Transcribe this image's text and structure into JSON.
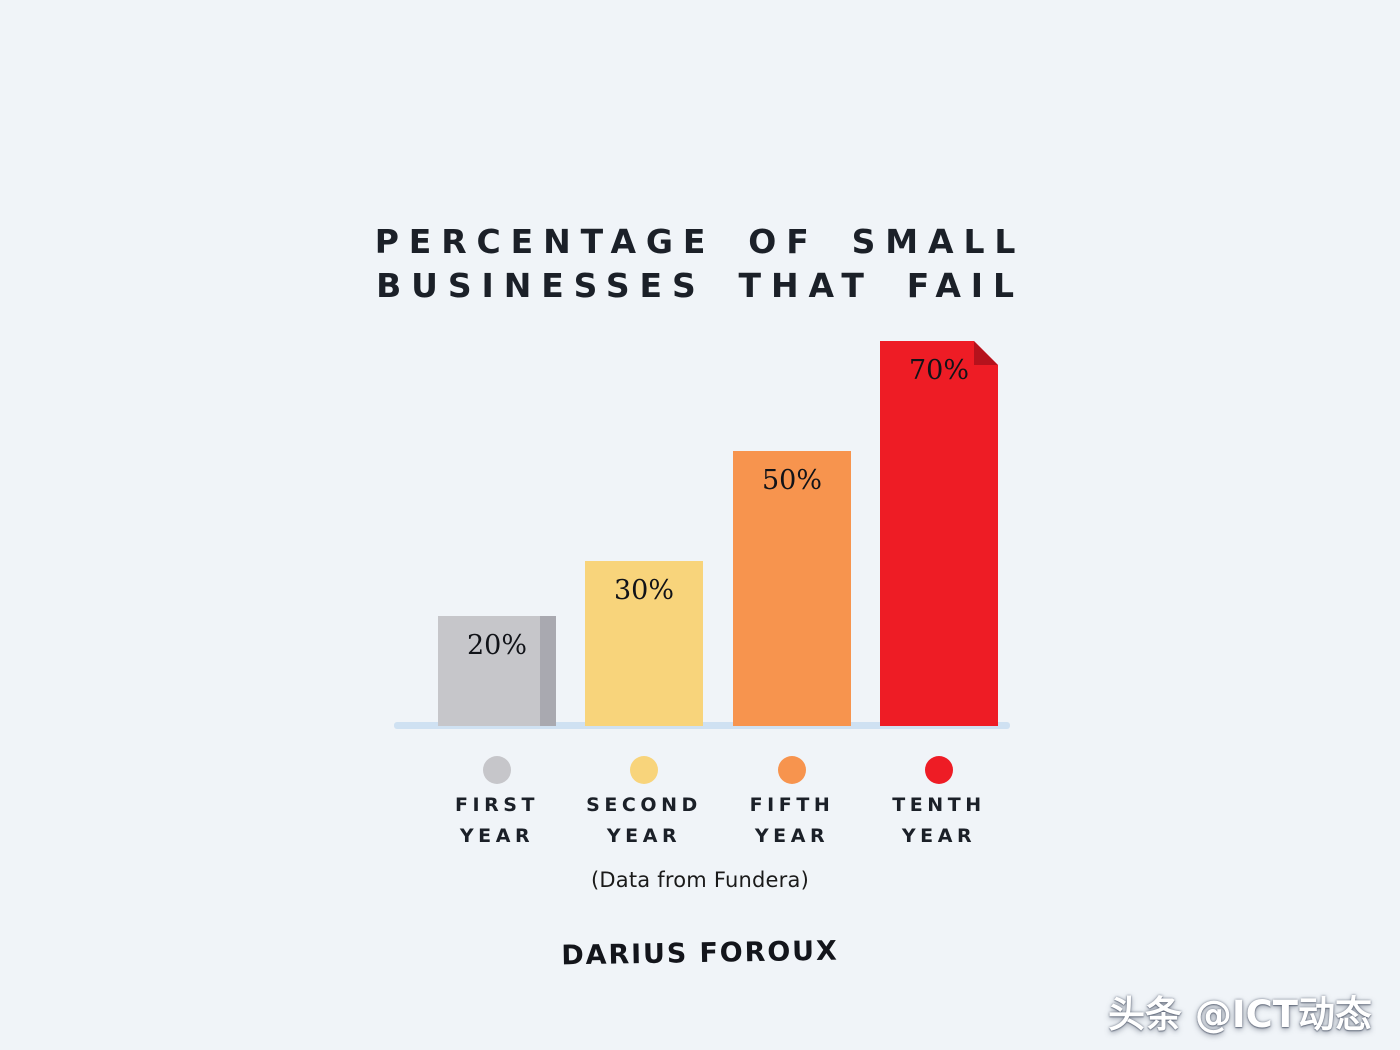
{
  "chart_data": {
    "type": "bar",
    "title": "PERCENTAGE OF SMALL BUSINESSES THAT FAIL",
    "title_lines": [
      "PERCENTAGE OF SMALL",
      "BUSINESSES THAT FAIL"
    ],
    "categories": [
      "FIRST YEAR",
      "SECOND YEAR",
      "FIFTH YEAR",
      "TENTH YEAR"
    ],
    "values": [
      20,
      30,
      50,
      70
    ],
    "value_labels": [
      "20%",
      "30%",
      "50%",
      "70%"
    ],
    "ylim": [
      0,
      75
    ],
    "grid": false,
    "legend": false,
    "source_note": "(Data from Fundera)",
    "bars": [
      {
        "id": "first-year",
        "label_lines": [
          "FIRST",
          "YEAR"
        ],
        "value": 20,
        "value_label": "20%",
        "color": "#c6c6ca",
        "effect": "right-shade",
        "shade_color": "#a9a9b0",
        "fold_color": null
      },
      {
        "id": "second-year",
        "label_lines": [
          "SECOND",
          "YEAR"
        ],
        "value": 30,
        "value_label": "30%",
        "color": "#f8d47b",
        "effect": null,
        "shade_color": null,
        "fold_color": null
      },
      {
        "id": "fifth-year",
        "label_lines": [
          "FIFTH",
          "YEAR"
        ],
        "value": 50,
        "value_label": "50%",
        "color": "#f7944e",
        "effect": null,
        "shade_color": null,
        "fold_color": null
      },
      {
        "id": "tenth-year",
        "label_lines": [
          "TENTH",
          "YEAR"
        ],
        "value": 70,
        "value_label": "70%",
        "color": "#ee1c25",
        "effect": "fold-corner",
        "shade_color": null,
        "fold_color": "#b5121c"
      }
    ],
    "colors": {
      "background": "#f0f4f8",
      "baseline": "#cfe1f2",
      "text": "#1b2028"
    }
  },
  "footer": {
    "signature": "DARIUS FOROUX",
    "watermark": "头条 @ICT动态"
  }
}
